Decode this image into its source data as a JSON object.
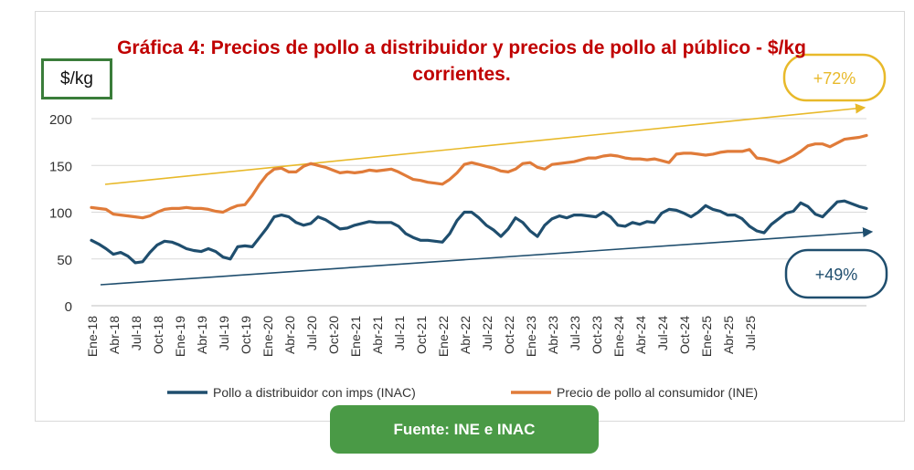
{
  "chart_data": {
    "type": "line",
    "title": "Gráfica 4: Precios de pollo a distribuidor y precios de pollo al público - $/kg corrientes.",
    "ylabel": "$/kg",
    "ylim": [
      0,
      200
    ],
    "yticks": [
      0,
      50,
      100,
      150,
      200
    ],
    "grid": true,
    "legend_position": "bottom",
    "x_tick_labels": [
      "Ene-18",
      "Abr-18",
      "Jul-18",
      "Oct-18",
      "Ene-19",
      "Abr-19",
      "Jul-19",
      "Oct-19",
      "Ene-20",
      "Abr-20",
      "Jul-20",
      "Oct-20",
      "Ene-21",
      "Abr-21",
      "Jul-21",
      "Oct-21",
      "Ene-22",
      "Abr-22",
      "Jul-22",
      "Oct-22",
      "Ene-23",
      "Abr-23",
      "Jul-23",
      "Oct-23",
      "Ene-24",
      "Abr-24",
      "Jul-24",
      "Oct-24",
      "Ene-25",
      "Abr-25",
      "Jul-25"
    ],
    "series": [
      {
        "name": "Pollo a distribuidor con imps (INAC)",
        "color": "#1f4e6e",
        "values": [
          70,
          66,
          61,
          55,
          57,
          53,
          46,
          47,
          57,
          65,
          69,
          68,
          65,
          61,
          59,
          58,
          61,
          58,
          52,
          50,
          63,
          64,
          63,
          73,
          83,
          95,
          97,
          95,
          89,
          86,
          88,
          95,
          92,
          87,
          82,
          83,
          86,
          88,
          90,
          89,
          89,
          89,
          85,
          77,
          73,
          70,
          70,
          69,
          68,
          77,
          91,
          100,
          100,
          94,
          86,
          81,
          74,
          82,
          94,
          89,
          80,
          74,
          86,
          93,
          96,
          94,
          97,
          97,
          96,
          95,
          100,
          95,
          86,
          85,
          89,
          87,
          90,
          89,
          99,
          103,
          102,
          99,
          95,
          100,
          107,
          103,
          101,
          97,
          97,
          93,
          85,
          80,
          78,
          87,
          93,
          99,
          101,
          110,
          106,
          98,
          95,
          103,
          111,
          112,
          109,
          106,
          104
        ]
      },
      {
        "name": "Precio de pollo al consumidor (INE)",
        "color": "#e07b39",
        "values": [
          105,
          104,
          103,
          98,
          97,
          96,
          95,
          94,
          96,
          100,
          103,
          104,
          104,
          105,
          104,
          104,
          103,
          101,
          100,
          104,
          107,
          108,
          118,
          130,
          140,
          146,
          147,
          143,
          143,
          149,
          152,
          150,
          148,
          145,
          142,
          143,
          142,
          143,
          145,
          144,
          145,
          146,
          143,
          139,
          135,
          134,
          132,
          131,
          130,
          135,
          142,
          151,
          153,
          151,
          149,
          147,
          144,
          143,
          146,
          152,
          153,
          148,
          146,
          151,
          152,
          153,
          154,
          156,
          158,
          158,
          160,
          161,
          160,
          158,
          157,
          157,
          156,
          157,
          155,
          153,
          162,
          163,
          163,
          162,
          161,
          162,
          164,
          165,
          165,
          165,
          167,
          158,
          157,
          155,
          153,
          156,
          160,
          165,
          171,
          173,
          173,
          170,
          174,
          178,
          179,
          180,
          182
        ]
      }
    ],
    "annotations": [
      {
        "text": "+72%",
        "color": "#e8b92a"
      },
      {
        "text": "+49%",
        "color": "#1f4e6e"
      }
    ]
  },
  "unit_label": "$/kg",
  "source": "Fuente: INE e INAC"
}
